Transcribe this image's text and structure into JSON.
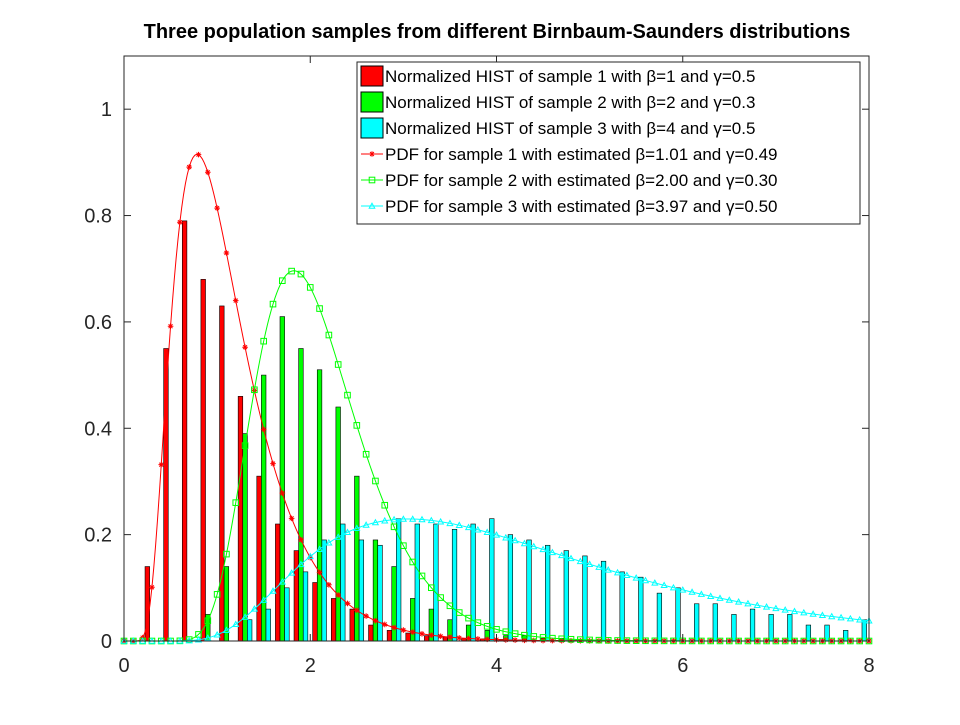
{
  "chart_data": {
    "type": "bar",
    "title": "Three population samples from different Birnbaum-Saunders distributions",
    "xlabel": "",
    "ylabel": "",
    "xlim": [
      0,
      8
    ],
    "ylim": [
      0,
      1.1
    ],
    "x_ticks": [
      "0",
      "2",
      "4",
      "6",
      "8"
    ],
    "y_ticks": [
      "0",
      "0.2",
      "0.4",
      "0.6",
      "0.8",
      "1"
    ],
    "x_tick_values": [
      0,
      2,
      4,
      6,
      8
    ],
    "y_tick_values": [
      0,
      0.2,
      0.4,
      0.6,
      0.8,
      1
    ],
    "grid": false,
    "legend_position": "top-right",
    "bin_centers": [
      0.1,
      0.3,
      0.5,
      0.7,
      0.9,
      1.1,
      1.3,
      1.5,
      1.7,
      1.9,
      2.1,
      2.3,
      2.5,
      2.7,
      2.9,
      3.1,
      3.3,
      3.5,
      3.7,
      3.9,
      4.1,
      4.3,
      4.5,
      4.7,
      4.9,
      5.1,
      5.3,
      5.5,
      5.7,
      5.9,
      6.1,
      6.3,
      6.5,
      6.7,
      6.9,
      7.1,
      7.3,
      7.5,
      7.7,
      7.9
    ],
    "histograms": [
      {
        "name": "Normalized HIST of sample 1 with β=1 and γ=0.5",
        "color": "#ff0000",
        "values": [
          0.0,
          0.14,
          0.55,
          0.79,
          0.68,
          0.63,
          0.46,
          0.31,
          0.22,
          0.17,
          0.11,
          0.08,
          0.06,
          0.03,
          0.02,
          0.015,
          0.01,
          0.008,
          0.005,
          0.004,
          0.003,
          0.002,
          0.001,
          0.001,
          0.001,
          0.0,
          0.0,
          0.0,
          0.0,
          0.0,
          0.0,
          0.0,
          0.0,
          0.0,
          0.0,
          0.0,
          0.0,
          0.0,
          0.0,
          0.0
        ]
      },
      {
        "name": "Normalized HIST of sample 2 with β=2 and γ=0.3",
        "color": "#00ff00",
        "values": [
          0.0,
          0.0,
          0.0,
          0.0,
          0.05,
          0.14,
          0.39,
          0.5,
          0.61,
          0.55,
          0.51,
          0.44,
          0.31,
          0.19,
          0.14,
          0.08,
          0.06,
          0.04,
          0.03,
          0.02,
          0.01,
          0.01,
          0.005,
          0.005,
          0.003,
          0.002,
          0.002,
          0.001,
          0.001,
          0.001,
          0.0,
          0.0,
          0.0,
          0.0,
          0.0,
          0.0,
          0.0,
          0.0,
          0.0,
          0.0
        ]
      },
      {
        "name": "Normalized HIST of sample 3 with β=4 and γ=0.5",
        "color": "#00ffff",
        "values": [
          0.0,
          0.0,
          0.0,
          0.0,
          0.0,
          0.0,
          0.04,
          0.06,
          0.1,
          0.13,
          0.19,
          0.22,
          0.19,
          0.18,
          0.23,
          0.22,
          0.22,
          0.21,
          0.22,
          0.23,
          0.2,
          0.19,
          0.18,
          0.17,
          0.16,
          0.15,
          0.13,
          0.12,
          0.09,
          0.1,
          0.07,
          0.07,
          0.05,
          0.06,
          0.05,
          0.05,
          0.03,
          0.03,
          0.02,
          0.04
        ]
      }
    ],
    "pdf_series": [
      {
        "name": "PDF for sample 1 with estimated β=1.01 and γ=0.49",
        "color": "#ff0000",
        "marker": "star",
        "beta": 1.01,
        "gamma": 0.49
      },
      {
        "name": "PDF for sample 2 with estimated β=2.00 and γ=0.30",
        "color": "#00ff00",
        "marker": "square",
        "beta": 2.0,
        "gamma": 0.3
      },
      {
        "name": "PDF for sample 3 with estimated β=3.97 and γ=0.50",
        "color": "#00ffff",
        "marker": "triangle",
        "beta": 3.97,
        "gamma": 0.5
      }
    ]
  }
}
